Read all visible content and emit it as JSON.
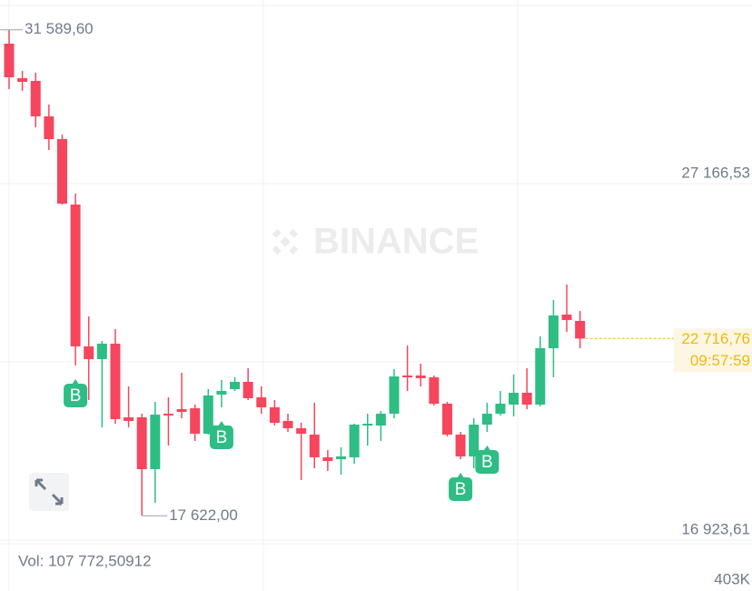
{
  "chart_data": {
    "type": "candlestick",
    "watermark": "BINANCE",
    "up_color": "#2ebd85",
    "down_color": "#f6465d",
    "ylim": [
      16766.8,
      32444.8
    ],
    "yticks": [
      {
        "value": 27166.53,
        "label": "27 166,53"
      },
      {
        "value": 16923.61,
        "label": "16 923,61"
      }
    ],
    "grid": true,
    "candles": {
      "open": [
        31191,
        30198,
        30119,
        29100,
        28447,
        26566,
        22489,
        22124,
        22568,
        20451,
        20451,
        18962,
        20556,
        20686,
        20712,
        19981,
        21105,
        21261,
        21471,
        21026,
        20739,
        20347,
        20138,
        19955,
        19302,
        19249,
        19302,
        20216,
        20216,
        20556,
        21653,
        21653,
        21601,
        20843,
        19955,
        19328,
        20242,
        20556,
        20817,
        21157,
        20817,
        22437,
        23404,
        23222
      ],
      "high": [
        31589.6,
        30407,
        30355,
        29440,
        28578,
        26879,
        23352,
        22646,
        22986,
        21340,
        20556,
        20896,
        21026,
        21732,
        20817,
        21261,
        21523,
        21601,
        21862,
        21340,
        20948,
        20556,
        20294,
        20870,
        19511,
        19589,
        20268,
        20556,
        20634,
        21836,
        22515,
        21993,
        21653,
        20896,
        20033,
        20425,
        20870,
        21209,
        21680,
        21862,
        22777,
        23822,
        24266,
        23509
      ],
      "low": [
        29884,
        29832,
        28787,
        28134,
        26566,
        21941,
        20948,
        20164,
        20268,
        20164,
        17622,
        17995,
        19641,
        20425,
        19772,
        19955,
        20739,
        21209,
        20948,
        20556,
        20216,
        20033,
        18648,
        18988,
        18910,
        18805,
        19119,
        19641,
        19772,
        20425,
        21209,
        21340,
        20791,
        19902,
        19249,
        18988,
        20033,
        20504,
        20478,
        20686,
        20764,
        21601,
        22907,
        22437
      ],
      "close": [
        30224,
        30093,
        29100,
        28447,
        26592,
        22489,
        22124,
        22568,
        20399,
        20347,
        18962,
        20530,
        20504,
        20608,
        19981,
        21079,
        21209,
        21471,
        21000,
        20739,
        20294,
        20138,
        19981,
        19302,
        19197,
        19328,
        20242,
        20268,
        20556,
        21627,
        21601,
        21575,
        20843,
        19955,
        19328,
        20242,
        20556,
        20843,
        21157,
        20817,
        22437,
        23379,
        23248,
        22716.76
      ]
    },
    "buy_signals": [
      null,
      null,
      null,
      null,
      null,
      "B",
      null,
      null,
      null,
      null,
      null,
      null,
      null,
      null,
      null,
      null,
      "B",
      null,
      null,
      null,
      null,
      null,
      null,
      null,
      null,
      null,
      null,
      null,
      null,
      null,
      null,
      null,
      null,
      null,
      "B",
      null,
      "B",
      null,
      null,
      null,
      null,
      null,
      null,
      null
    ],
    "max_label": {
      "value": 31589.6,
      "label": "31 589,60"
    },
    "min_label": {
      "value": 17622,
      "label": "17 622,00"
    },
    "current_price": {
      "value": 22716.76,
      "label": "22 716,76"
    },
    "countdown": "09:57:59",
    "volume_label": "Vol: 107 772,50912",
    "volume_axis_label": "403K"
  }
}
